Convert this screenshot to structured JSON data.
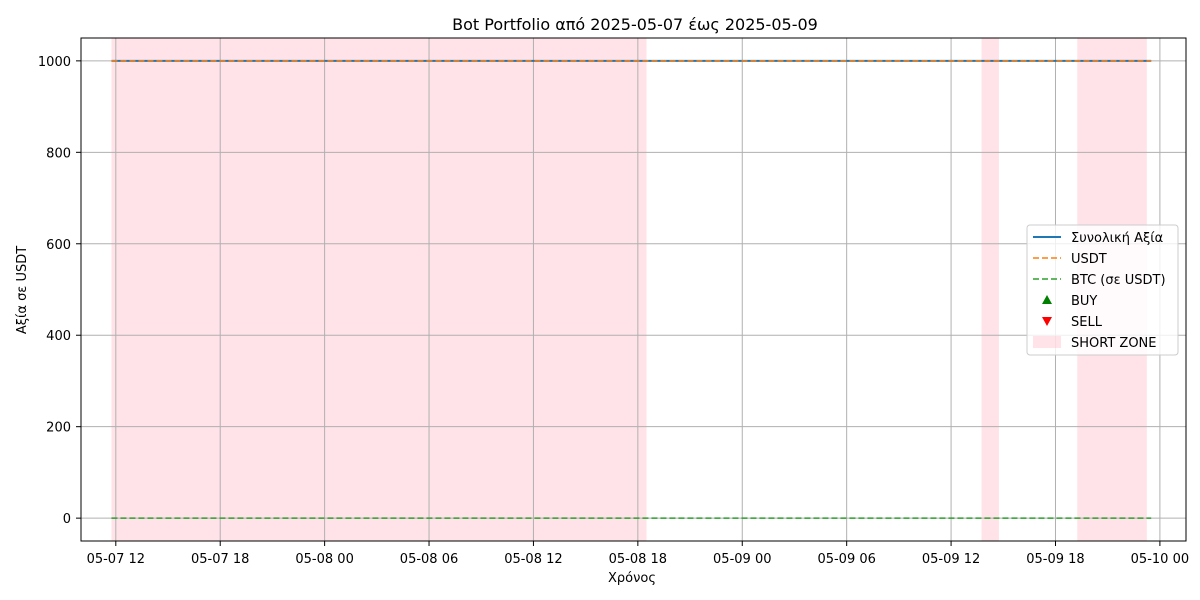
{
  "chart_data": {
    "type": "line",
    "title": "Bot Portfolio από 2025-05-07 έως 2025-05-09",
    "xlabel": "Χρόνος",
    "ylabel": "Αξία σε USDT",
    "x_unit": "datetime",
    "xlim": [
      "2025-05-07 10:00",
      "2025-05-10 01:30"
    ],
    "ylim": [
      -50,
      1050
    ],
    "x_ticks": [
      {
        "value": "2025-05-07 12:00",
        "label": "05-07 12"
      },
      {
        "value": "2025-05-07 18:00",
        "label": "05-07 18"
      },
      {
        "value": "2025-05-08 00:00",
        "label": "05-08 00"
      },
      {
        "value": "2025-05-08 06:00",
        "label": "05-08 06"
      },
      {
        "value": "2025-05-08 12:00",
        "label": "05-08 12"
      },
      {
        "value": "2025-05-08 18:00",
        "label": "05-08 18"
      },
      {
        "value": "2025-05-09 00:00",
        "label": "05-09 00"
      },
      {
        "value": "2025-05-09 06:00",
        "label": "05-09 06"
      },
      {
        "value": "2025-05-09 12:00",
        "label": "05-09 12"
      },
      {
        "value": "2025-05-09 18:00",
        "label": "05-09 18"
      },
      {
        "value": "2025-05-10 00:00",
        "label": "05-10 00"
      }
    ],
    "y_ticks": [
      0,
      200,
      400,
      600,
      800,
      1000
    ],
    "grid": true,
    "legend_position": "center-right",
    "series": [
      {
        "name": "Συνολική Αξία",
        "color": "#1f77b4",
        "style": "solid",
        "x": [
          "2025-05-07 11:45",
          "2025-05-09 23:30"
        ],
        "values": [
          1000,
          1000
        ]
      },
      {
        "name": "USDT",
        "color": "#ff7f0e",
        "style": "dashed",
        "x": [
          "2025-05-07 11:45",
          "2025-05-09 23:30"
        ],
        "values": [
          1000,
          1000
        ]
      },
      {
        "name": "BTC (σε USDT)",
        "color": "#2ca02c",
        "style": "dashed",
        "x": [
          "2025-05-07 11:45",
          "2025-05-09 23:30"
        ],
        "values": [
          0,
          0
        ]
      }
    ],
    "markers": [
      {
        "name": "BUY",
        "color": "#008000",
        "shape": "triangle-up",
        "points": []
      },
      {
        "name": "SELL",
        "color": "#ff0000",
        "shape": "triangle-down",
        "points": []
      }
    ],
    "shaded_regions": {
      "name": "SHORT ZONE",
      "color": "#ffc0cb",
      "ranges": [
        [
          "2025-05-07 11:45",
          "2025-05-08 18:30"
        ],
        [
          "2025-05-09 13:45",
          "2025-05-09 14:45"
        ],
        [
          "2025-05-09 19:15",
          "2025-05-09 23:15"
        ]
      ]
    }
  }
}
